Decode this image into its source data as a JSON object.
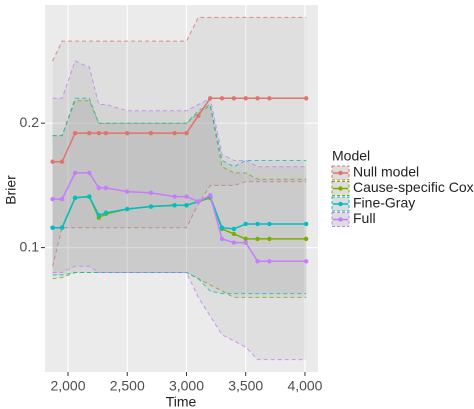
{
  "chart_data": {
    "type": "line",
    "x_label": "Time",
    "y_label": "Brier",
    "legend_title": "Model",
    "legend": "right",
    "grid": true,
    "xlim": [
      1806,
      4110
    ],
    "ylim": [
      0,
      0.295
    ],
    "xticks": [
      {
        "value": 2000,
        "label": "2,000"
      },
      {
        "value": 2500,
        "label": "2,500"
      },
      {
        "value": 3000,
        "label": "3,000"
      },
      {
        "value": 3500,
        "label": "3,500"
      },
      {
        "value": 4000,
        "label": "4,000"
      }
    ],
    "yticks": [
      0.1,
      0.2
    ],
    "x": [
      1870,
      1950,
      2060,
      2180,
      2260,
      2320,
      2500,
      2700,
      2900,
      3000,
      3100,
      3200,
      3300,
      3400,
      3500,
      3600,
      3700,
      4010
    ],
    "series": [
      {
        "name": "Null model",
        "color": "#E0736B",
        "values": [
          0.169,
          0.169,
          0.192,
          0.192,
          0.192,
          0.192,
          0.192,
          0.192,
          0.192,
          0.192,
          0.206,
          0.22,
          0.22,
          0.22,
          0.22,
          0.22,
          0.22,
          0.22
        ],
        "upper": [
          0.25,
          0.266,
          0.266,
          0.266,
          0.266,
          0.266,
          0.266,
          0.266,
          0.266,
          0.266,
          0.285,
          0.285,
          0.285,
          0.285,
          0.285,
          0.285,
          0.285,
          0.285
        ],
        "lower": [
          0.085,
          0.116,
          0.116,
          0.116,
          0.116,
          0.116,
          0.116,
          0.116,
          0.116,
          0.116,
          0.135,
          0.15,
          0.15,
          0.15,
          0.153,
          0.153,
          0.153,
          0.153
        ]
      },
      {
        "name": "Cause-specific Cox",
        "color": "#7CAE00",
        "values": [
          0.116,
          0.116,
          0.14,
          0.141,
          0.124,
          0.127,
          0.131,
          0.133,
          0.134,
          0.134,
          0.137,
          0.14,
          0.115,
          0.111,
          0.107,
          0.107,
          0.107,
          0.107
        ],
        "upper": [
          0.19,
          0.19,
          0.218,
          0.218,
          0.2,
          0.2,
          0.2,
          0.2,
          0.2,
          0.2,
          0.208,
          0.214,
          0.165,
          0.16,
          0.16,
          0.155,
          0.155,
          0.155
        ],
        "lower": [
          0.075,
          0.076,
          0.08,
          0.08,
          0.08,
          0.08,
          0.08,
          0.08,
          0.08,
          0.08,
          0.075,
          0.07,
          0.065,
          0.06,
          0.06,
          0.06,
          0.06,
          0.06
        ]
      },
      {
        "name": "Fine-Gray",
        "color": "#00BFC4",
        "values": [
          0.116,
          0.116,
          0.14,
          0.141,
          0.126,
          0.128,
          0.131,
          0.133,
          0.134,
          0.134,
          0.137,
          0.141,
          0.116,
          0.115,
          0.119,
          0.119,
          0.119,
          0.119
        ],
        "upper": [
          0.19,
          0.19,
          0.22,
          0.22,
          0.2,
          0.2,
          0.2,
          0.2,
          0.2,
          0.2,
          0.21,
          0.215,
          0.17,
          0.165,
          0.17,
          0.17,
          0.17,
          0.17
        ],
        "lower": [
          0.078,
          0.078,
          0.08,
          0.08,
          0.08,
          0.08,
          0.08,
          0.08,
          0.08,
          0.08,
          0.075,
          0.065,
          0.063,
          0.063,
          0.063,
          0.063,
          0.063,
          0.063
        ]
      },
      {
        "name": "Full",
        "color": "#C77CFF",
        "values": [
          0.139,
          0.139,
          0.16,
          0.16,
          0.148,
          0.148,
          0.145,
          0.144,
          0.141,
          0.141,
          0.137,
          0.142,
          0.107,
          0.104,
          0.104,
          0.089,
          0.089,
          0.089
        ],
        "upper": [
          0.22,
          0.22,
          0.25,
          0.245,
          0.215,
          0.215,
          0.21,
          0.21,
          0.21,
          0.21,
          0.215,
          0.22,
          0.175,
          0.17,
          0.17,
          0.165,
          0.165,
          0.165
        ],
        "lower": [
          0.08,
          0.08,
          0.085,
          0.085,
          0.08,
          0.08,
          0.08,
          0.08,
          0.08,
          0.08,
          0.06,
          0.045,
          0.03,
          0.025,
          0.02,
          0.01,
          0.01,
          0.01
        ]
      }
    ]
  }
}
